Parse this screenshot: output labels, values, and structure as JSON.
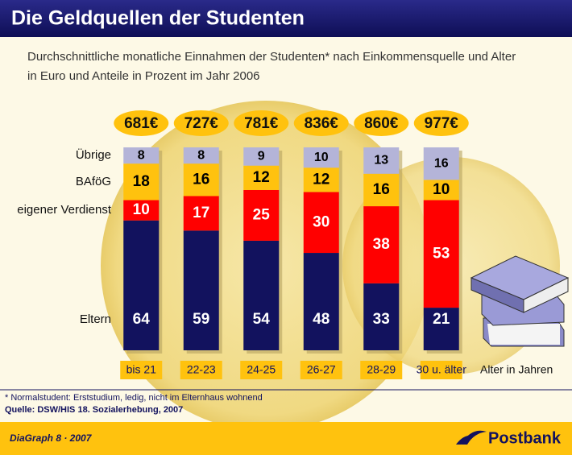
{
  "chart_data": {
    "type": "stacked_bar",
    "title": "Die Geldquellen der Studenten",
    "subtitle": [
      "Durchschnittliche monatliche Einnahmen der Studenten* nach Einkommensquelle und Alter",
      "in Euro und Anteile in Prozent im Jahr 2006"
    ],
    "categories": [
      "bis 21",
      "22-23",
      "24-25",
      "26-27",
      "28-29",
      "30 u. älter"
    ],
    "x_label": "Alter in Jahren",
    "ylim": [
      0,
      100
    ],
    "series": [
      {
        "name": "Eltern",
        "color": "#12125e",
        "values": [
          64,
          59,
          54,
          48,
          33,
          21
        ]
      },
      {
        "name": "eigener Verdienst",
        "color": "#ff0000",
        "values": [
          10,
          17,
          25,
          30,
          38,
          53
        ]
      },
      {
        "name": "BAföG",
        "color": "#ffc20e",
        "values": [
          18,
          16,
          12,
          12,
          16,
          10
        ]
      },
      {
        "name": "Übrige",
        "color": "#b4b4d8",
        "values": [
          8,
          8,
          9,
          10,
          13,
          16
        ]
      }
    ],
    "totals": {
      "values": [
        681,
        727,
        781,
        836,
        860,
        977
      ],
      "value_labels": [
        "681€",
        "727€",
        "781€",
        "836€",
        "860€",
        "977€"
      ]
    },
    "footnote": "* Normalstudent: Erststudium, ledig, nicht im Elternhaus wohnend",
    "source": "Quelle: DSW/HIS 18. Sozialerhebung, 2007",
    "footer": "DiaGraph 8 · 2007",
    "brand": "Postbank"
  }
}
